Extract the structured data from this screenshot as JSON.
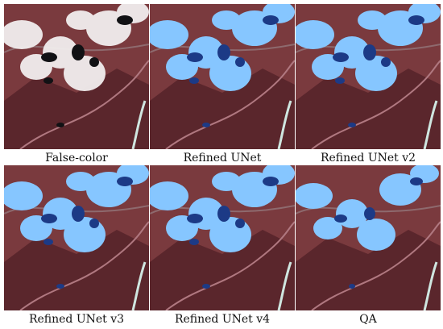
{
  "panels": [
    {
      "caption": "False-color",
      "mode": "false-color"
    },
    {
      "caption": "Refined UNet",
      "mode": "mask"
    },
    {
      "caption": "Refined UNet v2",
      "mode": "mask"
    },
    {
      "caption": "Refined UNet v3",
      "mode": "mask"
    },
    {
      "caption": "Refined UNet v4",
      "mode": "mask"
    },
    {
      "caption": "QA",
      "mode": "mask-qa"
    }
  ],
  "colors": {
    "terrain": "#7a3a3e",
    "terrain_dark": "#4a1f25",
    "ridge": "#b07880",
    "cloud_false": "#f2eeee",
    "shadow_false": "#111114",
    "cloud_mask": "#86c6ff",
    "shadow_mask": "#1c3a86",
    "river": "#cfe6e0",
    "road": "#8e6a6e"
  }
}
